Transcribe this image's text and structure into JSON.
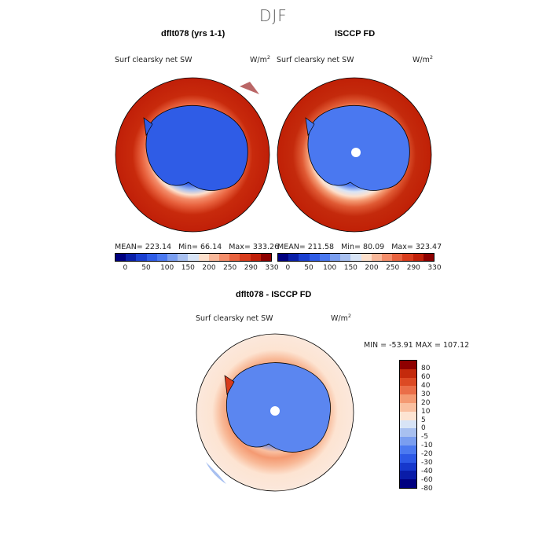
{
  "season": "DJF",
  "panels": [
    {
      "title": "dflt078 (yrs 1-1)",
      "variable": "Surf clearsky net SW",
      "units": "W/m",
      "units_sup": "2",
      "mean_label": "MEAN=",
      "mean": "223.14",
      "min_label": "Min=",
      "min": "66.14",
      "max_label": "Max=",
      "max": "333.26"
    },
    {
      "title": "ISCCP FD",
      "variable": "Surf clearsky net SW",
      "units": "W/m",
      "units_sup": "2",
      "mean_label": "MEAN=",
      "mean": "211.58",
      "min_label": "Min=",
      "min": "80.09",
      "max_label": "Max=",
      "max": "323.47"
    }
  ],
  "diff": {
    "title": "dflt078 - ISCCP FD",
    "variable": "Surf clearsky net SW",
    "units": "W/m",
    "units_sup": "2",
    "minmax": "MIN = -53.91  MAX = 107.12"
  },
  "colors": {
    "abs_scale": [
      "#00007f",
      "#0a1fa8",
      "#1a3fd0",
      "#2f5ce6",
      "#4a78f0",
      "#7a9ef0",
      "#a8c0f0",
      "#d8e4f6",
      "#fde0cc",
      "#f9b89a",
      "#f48d6a",
      "#e8623e",
      "#d83c1c",
      "#c01f08",
      "#8c0000"
    ],
    "diff_scale": [
      "#000080",
      "#0a1ca8",
      "#1638cc",
      "#2d59e6",
      "#4c7af0",
      "#7a9ef0",
      "#a8c0f0",
      "#d8e4f6",
      "#fde4d2",
      "#fac0a0",
      "#f49a72",
      "#ea6e48",
      "#dc4a24",
      "#c42a0c",
      "#8e0000"
    ]
  },
  "chart_data": [
    {
      "type": "heatmap",
      "title": "dflt078 (yrs 1-1)",
      "variable": "Surf clearsky net SW",
      "units": "W/m2",
      "projection": "south polar stereographic",
      "stats": {
        "mean": 223.14,
        "min": 66.14,
        "max": 333.26
      },
      "colorbar_ticks": [
        "0",
        "50",
        "100",
        "150",
        "200",
        "250",
        "290",
        "330"
      ]
    },
    {
      "type": "heatmap",
      "title": "ISCCP FD",
      "variable": "Surf clearsky net SW",
      "units": "W/m2",
      "projection": "south polar stereographic",
      "stats": {
        "mean": 211.58,
        "min": 80.09,
        "max": 323.47
      },
      "colorbar_ticks": [
        "0",
        "50",
        "100",
        "150",
        "200",
        "250",
        "290",
        "330"
      ]
    },
    {
      "type": "heatmap",
      "title": "dflt078 - ISCCP FD",
      "variable": "Surf clearsky net SW",
      "units": "W/m2",
      "projection": "south polar stereographic",
      "stats": {
        "min": -53.91,
        "max": 107.12
      },
      "colorbar_ticks": [
        "80",
        "60",
        "40",
        "30",
        "20",
        "10",
        "5",
        "0",
        "-5",
        "-10",
        "-20",
        "-30",
        "-40",
        "-60",
        "-80"
      ]
    }
  ]
}
